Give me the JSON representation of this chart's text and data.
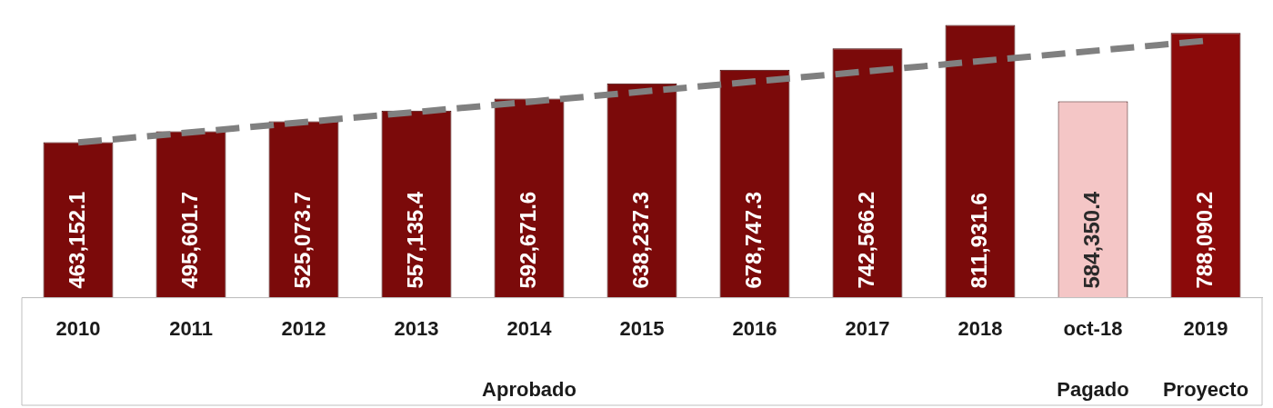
{
  "chart_data": {
    "type": "bar",
    "categories": [
      "2010",
      "2011",
      "2012",
      "2013",
      "2014",
      "2015",
      "2016",
      "2017",
      "2018",
      "oct-18",
      "2019"
    ],
    "series": [
      {
        "colors": [
          "#7b0a0a",
          "#7b0a0a",
          "#7b0a0a",
          "#7b0a0a",
          "#7b0a0a",
          "#7b0a0a",
          "#7b0a0a",
          "#7b0a0a",
          "#7b0a0a",
          "#f4c6c6",
          "#8b0a0a"
        ],
        "values": [
          463152.1,
          495601.7,
          525073.7,
          557135.4,
          592671.6,
          638237.3,
          678747.3,
          742566.2,
          811931.6,
          584350.4,
          788090.2
        ],
        "value_labels": [
          "463,152.1",
          "495,601.7",
          "525,073.7",
          "557,135.4",
          "592,671.6",
          "638,237.3",
          "678,747.3",
          "742,566.2",
          "811,931.6",
          "584,350.4",
          "788,090.2"
        ]
      },
      {
        "type": "line",
        "color": "#808080",
        "line_style": "dashed",
        "values": [
          462000,
          null,
          null,
          null,
          null,
          null,
          null,
          null,
          null,
          null,
          765000
        ]
      }
    ],
    "grid": false,
    "legend": false,
    "annotations": [
      "Aprobado",
      "Pagado",
      "Proyecto"
    ]
  }
}
